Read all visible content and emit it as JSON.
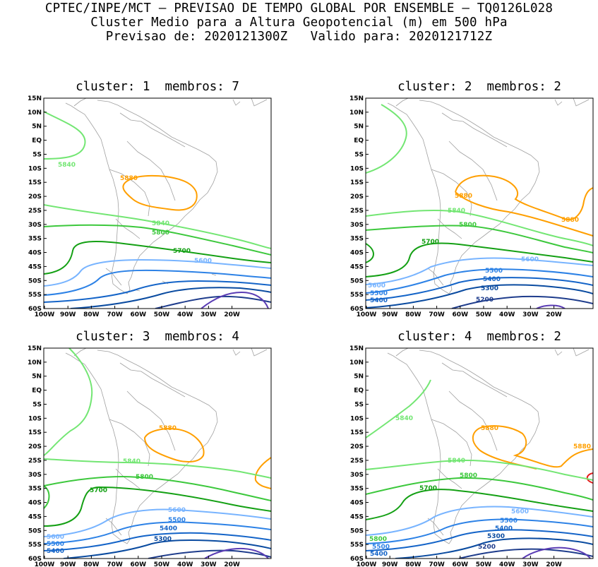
{
  "header": {
    "line1": "CPTEC/INPE/MCT — PREVISAO DE TEMPO GLOBAL POR ENSEMBLE — TQ0126L028",
    "line2": "Cluster Medio para a Altura Geopotencial (m) em 500 hPa",
    "line3": "Previsao de: 2020121300Z   Valido para: 2020121712Z"
  },
  "axes": {
    "lat_labels": [
      "15N",
      "10N",
      "5N",
      "EQ",
      "5S",
      "10S",
      "15S",
      "20S",
      "25S",
      "30S",
      "35S",
      "40S",
      "45S",
      "50S",
      "55S",
      "60S"
    ],
    "lon_labels": [
      "100W",
      "90W",
      "80W",
      "70W",
      "60W",
      "50W",
      "40W",
      "30W",
      "20W"
    ]
  },
  "colors": {
    "c5880": "#ff9f00",
    "c5840": "#73e673",
    "c5800": "#3cc83c",
    "c5700": "#14a014",
    "c5600": "#78b4ff",
    "c5500": "#2d82e6",
    "c5400": "#1464c8",
    "c5300": "#0a4ba0",
    "c5200": "#1e3c8c",
    "c5100": "#5a3cb4",
    "red": "#e61e1e",
    "coast": "#a0a0a0"
  },
  "panels": [
    {
      "title": "cluster: 1  membros: 7",
      "labels": [
        {
          "text": "5840",
          "c": "c5840"
        },
        {
          "text": "5880",
          "c": "c5880"
        },
        {
          "text": "5840",
          "c": "c5840"
        },
        {
          "text": "5800",
          "c": "c5800"
        },
        {
          "text": "5700",
          "c": "c5700"
        },
        {
          "text": "5600",
          "c": "c5600"
        }
      ]
    },
    {
      "title": "cluster: 2  membros: 2",
      "labels": [
        {
          "text": "5880",
          "c": "c5880"
        },
        {
          "text": "5880",
          "c": "c5880"
        },
        {
          "text": "5840",
          "c": "c5840"
        },
        {
          "text": "5800",
          "c": "c5800"
        },
        {
          "text": "5700",
          "c": "c5700"
        },
        {
          "text": "5600",
          "c": "c5600"
        },
        {
          "text": "5600",
          "c": "c5600"
        },
        {
          "text": "5500",
          "c": "c5500"
        },
        {
          "text": "5500",
          "c": "c5500"
        },
        {
          "text": "5400",
          "c": "c5400"
        },
        {
          "text": "5400",
          "c": "c5400"
        },
        {
          "text": "5300",
          "c": "c5300"
        },
        {
          "text": "5200",
          "c": "c5200"
        }
      ]
    },
    {
      "title": "cluster: 3  membros: 4",
      "labels": [
        {
          "text": "5880",
          "c": "c5880"
        },
        {
          "text": "5840",
          "c": "c5840"
        },
        {
          "text": "5800",
          "c": "c5800"
        },
        {
          "text": "5700",
          "c": "c5700"
        },
        {
          "text": "5600",
          "c": "c5600"
        },
        {
          "text": "5500",
          "c": "c5500"
        },
        {
          "text": "5400",
          "c": "c5400"
        },
        {
          "text": "5300",
          "c": "c5300"
        },
        {
          "text": "5600",
          "c": "c5600"
        },
        {
          "text": "5500",
          "c": "c5500"
        },
        {
          "text": "5400",
          "c": "c5400"
        }
      ]
    },
    {
      "title": "cluster: 4  membros: 2",
      "labels": [
        {
          "text": "5840",
          "c": "c5840"
        },
        {
          "text": "5880",
          "c": "c5880"
        },
        {
          "text": "5880",
          "c": "c5880"
        },
        {
          "text": "5840",
          "c": "c5840"
        },
        {
          "text": "5800",
          "c": "c5800"
        },
        {
          "text": "5700",
          "c": "c5700"
        },
        {
          "text": "5600",
          "c": "c5600"
        },
        {
          "text": "5500",
          "c": "c5500"
        },
        {
          "text": "5400",
          "c": "c5400"
        },
        {
          "text": "5300",
          "c": "c5300"
        },
        {
          "text": "5200",
          "c": "c5200"
        },
        {
          "text": "5800",
          "c": "c5800"
        },
        {
          "text": "5500",
          "c": "c5500"
        },
        {
          "text": "5400",
          "c": "c5400"
        }
      ]
    }
  ]
}
